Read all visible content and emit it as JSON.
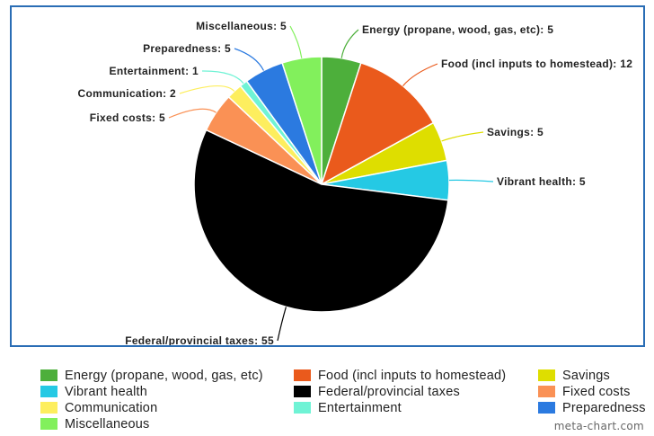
{
  "chart_data": {
    "type": "pie",
    "title": "",
    "slices": [
      {
        "label": "Energy (propane, wood, gas, etc)",
        "value": 5,
        "color": "#4daf3b"
      },
      {
        "label": "Food (incl inputs to homestead)",
        "value": 12,
        "color": "#ea5a1c"
      },
      {
        "label": "Savings",
        "value": 5,
        "color": "#dede00"
      },
      {
        "label": "Vibrant health",
        "value": 5,
        "color": "#25c9e4"
      },
      {
        "label": "Federal/provincial taxes",
        "value": 55,
        "color": "#000000"
      },
      {
        "label": "Fixed costs",
        "value": 5,
        "color": "#fa9155"
      },
      {
        "label": "Communication",
        "value": 2,
        "color": "#fdee5e"
      },
      {
        "label": "Entertainment",
        "value": 1,
        "color": "#6ff3d5"
      },
      {
        "label": "Preparedness",
        "value": 5,
        "color": "#2b7ae0"
      },
      {
        "label": "Miscellaneous",
        "value": 5,
        "color": "#82f05c"
      }
    ],
    "legend_position": "bottom",
    "data_labels": true
  },
  "watermark": "meta-chart.com"
}
